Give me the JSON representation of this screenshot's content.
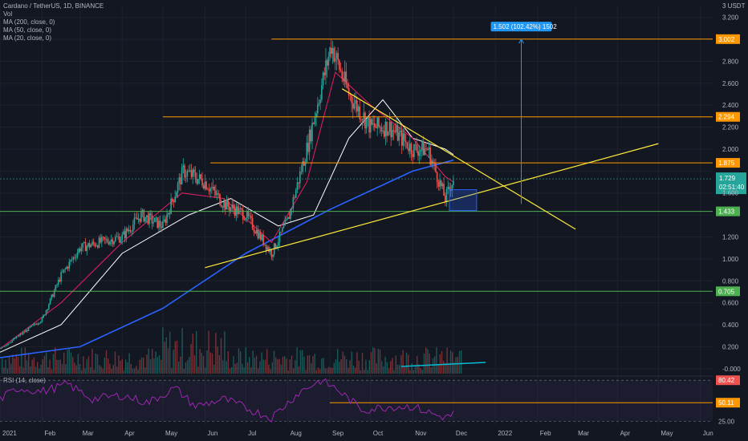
{
  "legend": {
    "symbol": "Cardano / TetherUS, 1D, BINANCE",
    "vol": "Vol",
    "ma200": "MA (200, close, 0)",
    "ma50": "MA (50, close, 0)",
    "ma20": "MA (20, close, 0)"
  },
  "rsi_label": "RSI (14, close)",
  "currency": "3 USDT",
  "measure_label": "1.502 (102.42%) 1502",
  "countdown": "02:51:40",
  "colors": {
    "background": "#131722",
    "up": "#26a69a",
    "down": "#ef5350",
    "ma200": "#2962ff",
    "ma50": "#ffffff",
    "ma20": "#e91e63",
    "trendline": "#ffeb3b",
    "level_orange": "#ff9800",
    "level_green": "#4caf50",
    "rsi": "#9c27b0",
    "measure": "#2196f3"
  },
  "chart_data": {
    "type": "line",
    "title": "Cardano / TetherUS, 1D, BINANCE",
    "xlabel": "",
    "ylabel": "",
    "x_ticks": [
      "2021",
      "Feb",
      "Mar",
      "Apr",
      "May",
      "Jun",
      "Jul",
      "Aug",
      "Sep",
      "Oct",
      "Nov",
      "Dec",
      "2022",
      "Feb",
      "Mar",
      "Apr",
      "May",
      "Jun"
    ],
    "y_ticks": [
      -0.0,
      0.2,
      0.4,
      0.6,
      0.8,
      1.0,
      1.2,
      1.4,
      1.6,
      1.8,
      2.0,
      2.2,
      2.4,
      2.6,
      2.8,
      3.0,
      3.2
    ],
    "y_tick_labels": [
      "-0.000",
      "0.200",
      "0.400",
      "0.600",
      "0.800",
      "1.000",
      "1.200",
      "1.400",
      "1.600",
      "1.800",
      "2.000",
      "2.200",
      "2.400",
      "2.600",
      "2.800",
      "3.000",
      "3.200"
    ],
    "ylim": [
      -0.06,
      3.3
    ],
    "price_series": {
      "name": "ADAUSDT",
      "x": [
        "2021-01-01",
        "2021-01-15",
        "2021-02-01",
        "2021-02-15",
        "2021-03-01",
        "2021-03-15",
        "2021-04-01",
        "2021-04-15",
        "2021-05-01",
        "2021-05-16",
        "2021-06-01",
        "2021-06-15",
        "2021-07-01",
        "2021-07-20",
        "2021-08-01",
        "2021-08-15",
        "2021-09-02",
        "2021-09-15",
        "2021-10-01",
        "2021-10-15",
        "2021-11-01",
        "2021-11-12",
        "2021-11-25",
        "2021-12-01"
      ],
      "values": [
        0.18,
        0.3,
        0.45,
        0.85,
        1.1,
        1.15,
        1.2,
        1.4,
        1.3,
        1.8,
        1.7,
        1.5,
        1.4,
        1.05,
        1.35,
        2.0,
        2.95,
        2.5,
        2.2,
        2.2,
        2.0,
        2.0,
        1.55,
        1.73
      ]
    },
    "ma200": {
      "name": "MA (200, close, 0)",
      "x": [
        "2021-01-01",
        "2021-03-01",
        "2021-05-01",
        "2021-07-01",
        "2021-09-01",
        "2021-11-01",
        "2021-12-01"
      ],
      "values": [
        0.1,
        0.2,
        0.55,
        1.05,
        1.45,
        1.8,
        1.9
      ]
    },
    "ma50": {
      "name": "MA (50, close, 0)",
      "x": [
        "2021-01-01",
        "2021-02-15",
        "2021-04-01",
        "2021-05-20",
        "2021-06-20",
        "2021-07-25",
        "2021-08-20",
        "2021-09-15",
        "2021-10-10",
        "2021-11-01",
        "2021-11-25",
        "2021-12-01"
      ],
      "values": [
        0.15,
        0.4,
        1.05,
        1.4,
        1.55,
        1.3,
        1.4,
        2.1,
        2.45,
        2.1,
        2.0,
        1.95
      ]
    },
    "ma20": {
      "name": "MA (20, close, 0)",
      "x": [
        "2021-01-01",
        "2021-02-15",
        "2021-04-01",
        "2021-05-15",
        "2021-06-15",
        "2021-07-20",
        "2021-08-15",
        "2021-09-05",
        "2021-10-01",
        "2021-11-01",
        "2021-11-25",
        "2021-12-01"
      ],
      "values": [
        0.18,
        0.6,
        1.15,
        1.6,
        1.55,
        1.15,
        1.7,
        2.7,
        2.4,
        2.1,
        1.75,
        1.7
      ]
    },
    "levels": [
      {
        "value": 3.002,
        "label": "3.002",
        "color": "#ff9800"
      },
      {
        "value": 2.294,
        "label": "2.294",
        "color": "#ff9800"
      },
      {
        "value": 1.875,
        "label": "1.875",
        "color": "#ff9800"
      },
      {
        "value": 1.433,
        "label": "1.433",
        "color": "#4caf50"
      },
      {
        "value": 0.705,
        "label": "0.705",
        "color": "#4caf50"
      }
    ],
    "current_price": {
      "value": 1.729,
      "label": "1.729"
    },
    "trendlines": [
      {
        "x1": "2021-06-01",
        "y1": 0.92,
        "x2": "2022-05-01",
        "y2": 2.05
      },
      {
        "x1": "2021-09-10",
        "y1": 2.55,
        "x2": "2022-03-01",
        "y2": 1.27
      }
    ],
    "measure": {
      "x": "2022-01-20",
      "from": 1.5,
      "to": 3.0
    },
    "rsi": {
      "name": "RSI (14, close)",
      "ticks": [
        25.0,
        50.11,
        80.42
      ],
      "tick_labels": [
        "25.00",
        "50.11",
        "80.42"
      ],
      "x": [
        "2021-01-01",
        "2021-01-15",
        "2021-02-01",
        "2021-02-20",
        "2021-03-10",
        "2021-04-01",
        "2021-04-20",
        "2021-05-10",
        "2021-05-25",
        "2021-06-15",
        "2021-07-05",
        "2021-07-20",
        "2021-08-10",
        "2021-08-25",
        "2021-09-05",
        "2021-09-25",
        "2021-10-15",
        "2021-11-01",
        "2021-11-20",
        "2021-11-28",
        "2021-12-01"
      ],
      "values": [
        55,
        70,
        65,
        75,
        55,
        60,
        50,
        70,
        45,
        55,
        40,
        30,
        65,
        80,
        70,
        40,
        45,
        45,
        32,
        30,
        38
      ]
    }
  }
}
